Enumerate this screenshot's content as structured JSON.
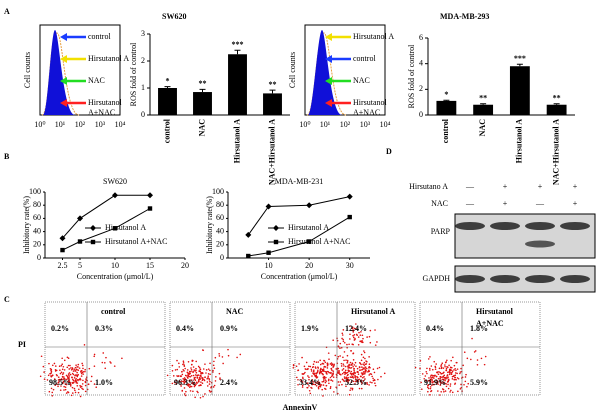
{
  "panel_labels": [
    "A",
    "B",
    "C",
    "D"
  ],
  "flow_histograms": [
    {
      "y_label": "Cell counts",
      "xticks": [
        "10⁰",
        "10¹",
        "10²",
        "10³",
        "10⁴"
      ],
      "arrows": [
        {
          "lines": [
            "control"
          ],
          "color": "#1a3cff"
        },
        {
          "lines": [
            "Hirsutanol A"
          ],
          "color": "#f2e000"
        },
        {
          "lines": [
            "NAC"
          ],
          "color": "#22dd22"
        },
        {
          "lines": [
            "Hirsutanol",
            "A+NAC"
          ],
          "color": "#ff2020"
        }
      ]
    },
    {
      "y_label": "Cell counts",
      "xticks": [
        "10⁰",
        "10¹",
        "10²",
        "10³",
        "10⁴"
      ],
      "arrows": [
        {
          "lines": [
            "Hirsutanol A"
          ],
          "color": "#f2e000"
        },
        {
          "lines": [
            "control"
          ],
          "color": "#1a3cff"
        },
        {
          "lines": [
            "NAC"
          ],
          "color": "#22dd22"
        },
        {
          "lines": [
            "Hirsutanol",
            "A+NAC"
          ],
          "color": "#ff2020"
        }
      ]
    }
  ],
  "chart_data": [
    {
      "type": "bar",
      "title": "SW620",
      "y_label": "ROS fold of control",
      "categories": [
        "control",
        "NAC",
        "Hirsutanol A",
        "NAC+Hirsutanol A"
      ],
      "values": [
        1.0,
        0.85,
        2.25,
        0.8
      ],
      "errors": [
        0.05,
        0.1,
        0.15,
        0.12
      ],
      "annotations": [
        "*",
        "**",
        "***",
        "**"
      ],
      "color": "#000000",
      "ylim": [
        0,
        3
      ],
      "yticks": [
        0,
        1,
        2,
        3
      ]
    },
    {
      "type": "bar",
      "title": "MDA-MB-293",
      "y_label": "ROS fold of control",
      "categories": [
        "control",
        "NAC",
        "Hirsutanol A",
        "NAC+Hirsutanol A"
      ],
      "values": [
        1.1,
        0.8,
        3.8,
        0.8
      ],
      "errors": [
        0.05,
        0.08,
        0.15,
        0.08
      ],
      "annotations": [
        "*",
        "**",
        "***",
        "**"
      ],
      "color": "#000000",
      "ylim": [
        0,
        6
      ],
      "yticks": [
        0,
        2,
        4,
        6
      ]
    },
    {
      "type": "line",
      "title": "SW620",
      "x_label": "Concentration (μmol/L)",
      "y_label": "Inhibitory rate(%)",
      "x": [
        2.5,
        5,
        10,
        15
      ],
      "xlim": [
        0,
        20
      ],
      "xticks": [
        2.5,
        5,
        10,
        15,
        20
      ],
      "ylim": [
        0,
        100
      ],
      "yticks": [
        0,
        20,
        40,
        60,
        80,
        100
      ],
      "series": [
        {
          "name": "Hirsutanol A",
          "color": "#000000",
          "marker": "diamond",
          "values": [
            30,
            60,
            95,
            95
          ]
        },
        {
          "name": "Hirsutanol A+NAC",
          "color": "#000000",
          "marker": "square",
          "values": [
            12,
            25,
            45,
            75
          ]
        }
      ]
    },
    {
      "type": "line",
      "title": "MDA-MB-231",
      "x_label": "Concentration (μmol/L)",
      "y_label": "Inhibitory rate(%)",
      "x": [
        5,
        10,
        20,
        30
      ],
      "xlim": [
        0,
        35
      ],
      "xticks": [
        10,
        20,
        30
      ],
      "ylim": [
        0,
        100
      ],
      "yticks": [
        0,
        20,
        40,
        60,
        80,
        100
      ],
      "series": [
        {
          "name": "Hirsutanol A",
          "color": "#000000",
          "marker": "diamond",
          "values": [
            35,
            78,
            80,
            93
          ]
        },
        {
          "name": "Hirsutanol A+NAC",
          "color": "#000000",
          "marker": "square",
          "values": [
            3,
            8,
            25,
            62
          ]
        }
      ]
    }
  ],
  "western_blot": {
    "treatments": [
      {
        "label": "Hirsutano A",
        "signs": [
          "—",
          "+",
          "+",
          "+"
        ]
      },
      {
        "label": "NAC",
        "signs": [
          "—",
          "+",
          "—",
          "+"
        ]
      }
    ],
    "bands": [
      "PARP",
      "GAPDH"
    ]
  },
  "apoptosis": {
    "y_label": "PI",
    "x_label": "AnnexinV",
    "plots": [
      {
        "title": [
          "control"
        ],
        "quadrants": [
          "0.2%",
          "0.3%",
          "98.5%",
          "1.0%"
        ]
      },
      {
        "title": [
          "NAC"
        ],
        "quadrants": [
          "0.4%",
          "0.9%",
          "96.3%",
          "2.4%"
        ]
      },
      {
        "title": [
          "Hirsutanol A"
        ],
        "quadrants": [
          "1.9%",
          "12.4%",
          "33.4%",
          "52.3%"
        ]
      },
      {
        "title": [
          "Hirsutanol",
          "A+NAC"
        ],
        "quadrants": [
          "0.4%",
          "1.8%",
          "91.9%",
          "5.9%"
        ]
      }
    ]
  }
}
